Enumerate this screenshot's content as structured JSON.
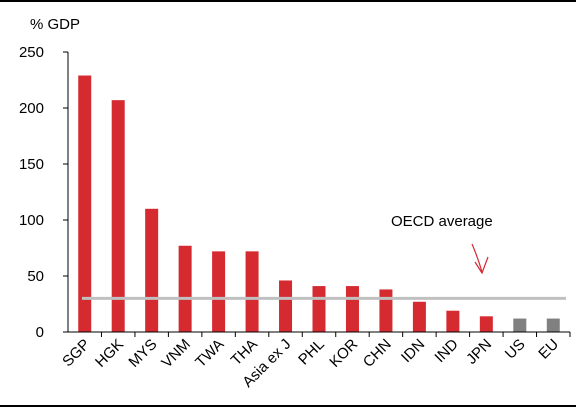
{
  "chart_data": {
    "type": "bar",
    "ylabel": "% GDP",
    "ylim": [
      0,
      250
    ],
    "yticks": [
      "0",
      "50",
      "100",
      "150",
      "200",
      "250"
    ],
    "categories": [
      "SGP",
      "HGK",
      "MYS",
      "VNM",
      "TWA",
      "THA",
      "Asia ex J",
      "PHL",
      "KOR",
      "CHN",
      "IDN",
      "IND",
      "JPN",
      "US",
      "EU"
    ],
    "values": [
      229,
      207,
      110,
      77,
      72,
      72,
      46,
      41,
      41,
      38,
      27,
      19,
      14,
      12,
      12
    ],
    "bar_colors": [
      "#d42a30",
      "#d42a30",
      "#d42a30",
      "#d42a30",
      "#d42a30",
      "#d42a30",
      "#d42a30",
      "#d42a30",
      "#d42a30",
      "#d42a30",
      "#d42a30",
      "#d42a30",
      "#d42a30",
      "#808080",
      "#808080"
    ],
    "reference_line": {
      "label": "OECD average",
      "value": 30,
      "color": "#c0c0c0"
    },
    "annotation": {
      "text": "OECD average",
      "arrow_color": "#d42a30"
    },
    "grid": false,
    "legend": "none"
  }
}
